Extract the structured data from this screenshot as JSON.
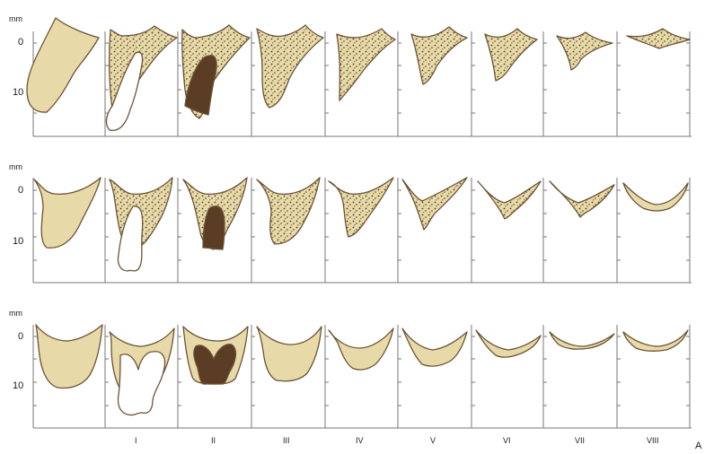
{
  "unit_label": "mm",
  "depth_ticks": [
    "0",
    "10"
  ],
  "column_labels": [
    "I",
    "II",
    "III",
    "IV",
    "V",
    "VI",
    "VII",
    "VIII"
  ],
  "figure_label": "A",
  "colors": {
    "bone": "#e8d9a8",
    "outline": "#6b5436",
    "speckle": "#4a3a22",
    "tooth_socket": "#5a3d24",
    "tooth": "#ffffff",
    "frame": "#777777"
  }
}
